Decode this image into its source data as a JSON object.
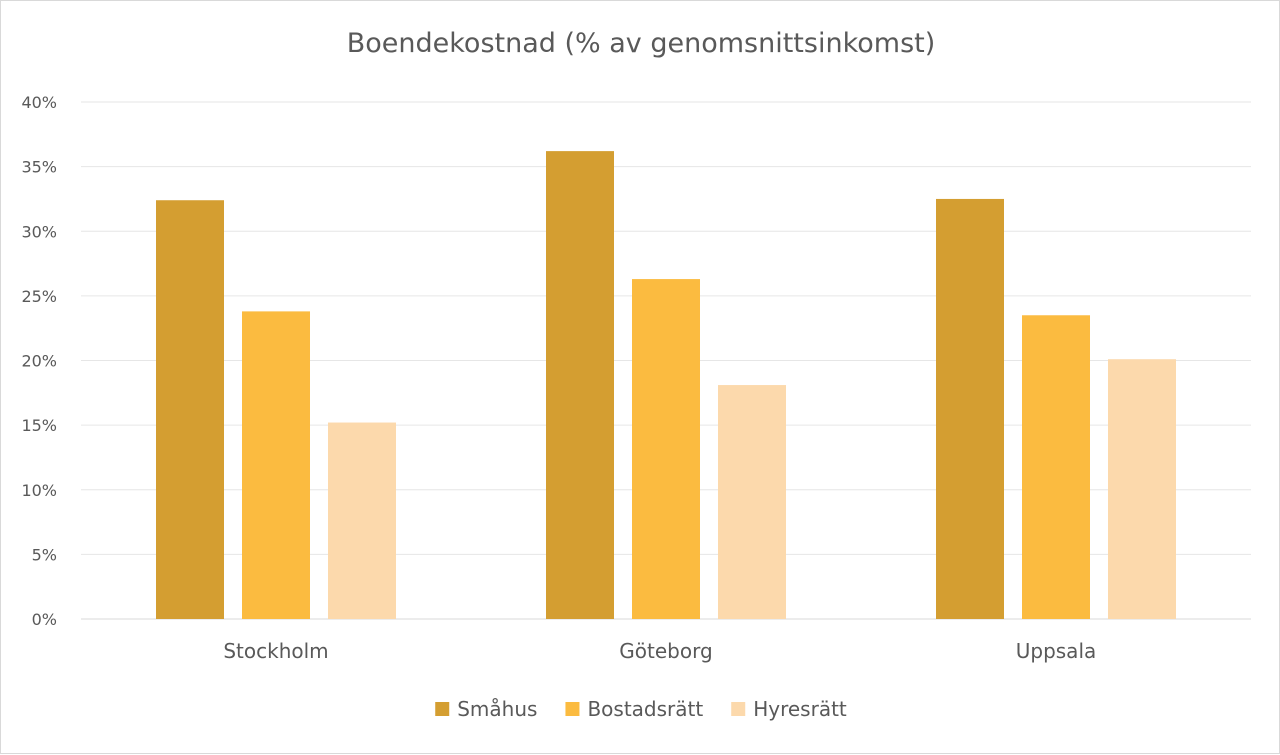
{
  "chart_data": {
    "type": "bar",
    "title": "Boendekostnad (% av genomsnittsinkomst)",
    "xlabel": "",
    "ylabel": "",
    "categories": [
      "Stockholm",
      "Göteborg",
      "Uppsala"
    ],
    "series": [
      {
        "name": "Småhus",
        "color": "#d49e31",
        "values": [
          32.4,
          36.2,
          32.5
        ]
      },
      {
        "name": "Bostadsrätt",
        "color": "#fbbb40",
        "values": [
          23.8,
          26.3,
          23.5
        ]
      },
      {
        "name": "Hyresrätt",
        "color": "#fcd9ac",
        "values": [
          15.2,
          18.1,
          20.1
        ]
      }
    ],
    "ylim": [
      0,
      40
    ],
    "yticks": [
      0,
      5,
      10,
      15,
      20,
      25,
      30,
      35,
      40
    ],
    "ytick_labels": [
      "0%",
      "5%",
      "10%",
      "15%",
      "20%",
      "25%",
      "30%",
      "35%",
      "40%"
    ],
    "grid": true,
    "legend_position": "bottom"
  }
}
